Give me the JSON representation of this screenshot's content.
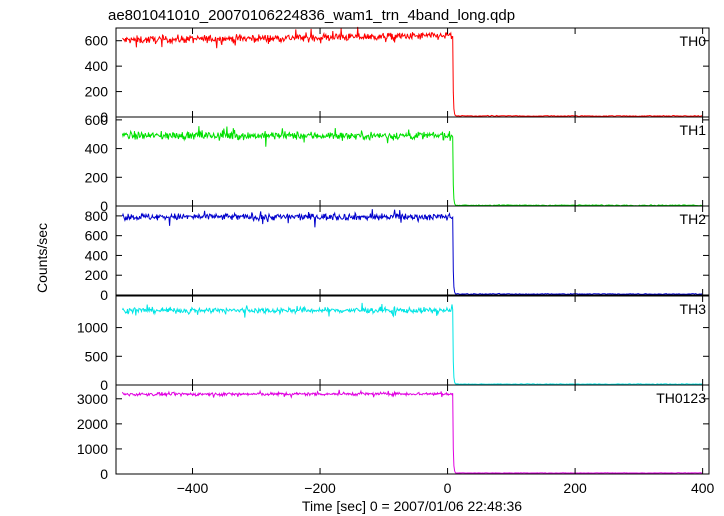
{
  "title": "ae801041010_20070106224836_wam1_trn_4band_long.qdp",
  "ylabel": "Counts/sec",
  "xlabel": "Time [sec] 0 = 2007/01/06 22:48:36",
  "chart_data": {
    "type": "line",
    "title": "ae801041010_20070106224836_wam1_trn_4band_long.qdp",
    "xlabel": "Time [sec] 0 = 2007/01/06 22:48:36",
    "ylabel": "Counts/sec",
    "xlim": [
      -520,
      410
    ],
    "x_ticks": [
      -400,
      -200,
      0,
      200,
      400
    ],
    "x_tick_labels": [
      "−400",
      "−200",
      "0",
      "200",
      "400"
    ],
    "drop_time": 8,
    "grid": false,
    "panels": [
      {
        "name": "TH0",
        "color": "#ff0000",
        "ylim": [
          0,
          700
        ],
        "ticks": [
          0,
          200,
          400,
          600
        ],
        "tick_labels": [
          "0",
          "200",
          "400",
          "600"
        ],
        "pre_level": 605,
        "pre_level_end": 640,
        "noise": 22,
        "post_level": 8
      },
      {
        "name": "TH1",
        "color": "#00e000",
        "ylim": [
          0,
          620
        ],
        "ticks": [
          0,
          200,
          400,
          600
        ],
        "tick_labels": [
          "0",
          "200",
          "400",
          "600"
        ],
        "pre_level": 490,
        "pre_level_end": 490,
        "noise": 20,
        "post_level": 5
      },
      {
        "name": "TH2",
        "color": "#0000cc",
        "ylim": [
          0,
          900
        ],
        "ticks": [
          0,
          200,
          400,
          600,
          800
        ],
        "tick_labels": [
          "0",
          "200",
          "400",
          "600",
          "800"
        ],
        "pre_level": 790,
        "pre_level_end": 790,
        "noise": 25,
        "post_level": 10
      },
      {
        "name": "TH3",
        "color": "#00e5e5",
        "ylim": [
          0,
          1550
        ],
        "ticks": [
          0,
          500,
          1000
        ],
        "tick_labels": [
          "0",
          "500",
          "1000"
        ],
        "pre_level": 1300,
        "pre_level_end": 1300,
        "noise": 35,
        "post_level": 15
      },
      {
        "name": "TH0123",
        "color": "#e000e0",
        "ylim": [
          0,
          3550
        ],
        "ticks": [
          0,
          1000,
          2000,
          3000
        ],
        "tick_labels": [
          "0",
          "1000",
          "2000",
          "3000"
        ],
        "pre_level": 3180,
        "pre_level_end": 3200,
        "noise": 45,
        "post_level": 40
      }
    ]
  }
}
